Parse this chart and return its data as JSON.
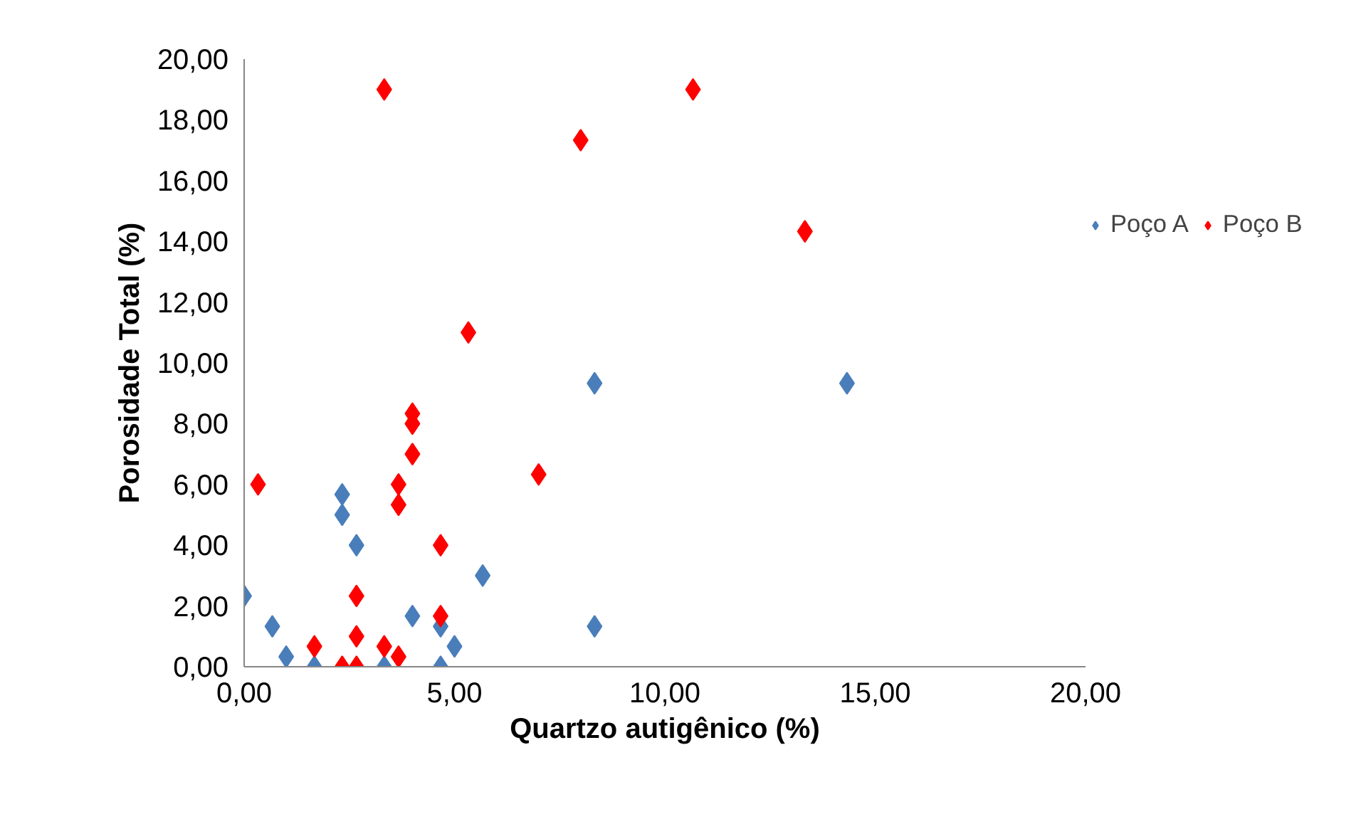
{
  "chart_data": {
    "type": "scatter",
    "xlabel": "Quartzo autigênico (%)",
    "ylabel": "Porosidade Total (%)",
    "xlim": [
      0,
      20
    ],
    "ylim": [
      0,
      20
    ],
    "xticks": [
      {
        "value": 0,
        "label": "0,00"
      },
      {
        "value": 5,
        "label": "5,00"
      },
      {
        "value": 10,
        "label": "10,00"
      },
      {
        "value": 15,
        "label": "15,00"
      },
      {
        "value": 20,
        "label": "20,00"
      }
    ],
    "yticks": [
      {
        "value": 0,
        "label": "0,00"
      },
      {
        "value": 2,
        "label": "2,00"
      },
      {
        "value": 4,
        "label": "4,00"
      },
      {
        "value": 6,
        "label": "6,00"
      },
      {
        "value": 8,
        "label": "8,00"
      },
      {
        "value": 10,
        "label": "10,00"
      },
      {
        "value": 12,
        "label": "12,00"
      },
      {
        "value": 14,
        "label": "14,00"
      },
      {
        "value": 16,
        "label": "16,00"
      },
      {
        "value": 18,
        "label": "18,00"
      },
      {
        "value": 20,
        "label": "20,00"
      }
    ],
    "grid": false,
    "legend": "right",
    "marker": "diamond",
    "series": [
      {
        "name": "Poço A",
        "color": "#4a7ebb",
        "x": [
          0,
          0.67,
          1.0,
          1.67,
          2.33,
          2.33,
          2.67,
          3.33,
          4.0,
          4.67,
          4.67,
          5.0,
          5.67,
          8.33,
          8.33,
          14.33
        ],
        "values": [
          2.33,
          1.33,
          0.33,
          0,
          5.67,
          5.0,
          4.0,
          0,
          1.67,
          1.33,
          0,
          0.67,
          3.0,
          9.33,
          1.33,
          9.33
        ]
      },
      {
        "name": "Poço B",
        "color": "#ff0000",
        "x": [
          3.33,
          8.0,
          10.67,
          13.33,
          5.33,
          4.0,
          4.0,
          4.0,
          0.33,
          3.67,
          3.67,
          7.0,
          4.67,
          2.67,
          4.67,
          2.67,
          1.67,
          3.33,
          3.67,
          2.33,
          2.67
        ],
        "values": [
          19.0,
          17.33,
          19.0,
          14.33,
          11.0,
          8.33,
          8.0,
          7.0,
          6.0,
          6.0,
          5.33,
          6.33,
          4.0,
          2.33,
          1.67,
          1.0,
          0.67,
          0.67,
          0.33,
          0,
          0
        ]
      }
    ]
  }
}
